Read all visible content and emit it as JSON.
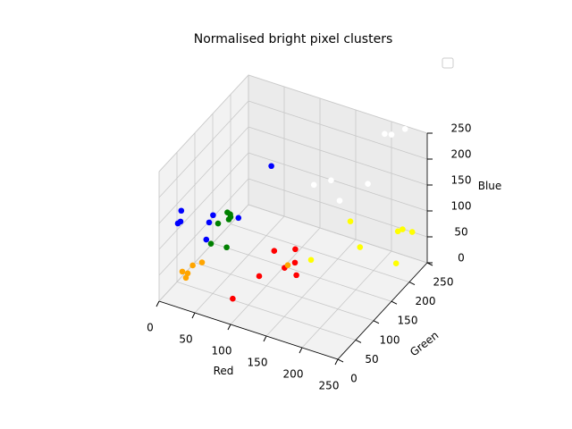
{
  "chart_data": {
    "type": "scatter3d",
    "title": "Normalised bright pixel clusters",
    "xlabel": "Red",
    "ylabel": "Green",
    "zlabel": "Blue",
    "xlim": [
      0,
      250
    ],
    "ylim": [
      0,
      250
    ],
    "zlim": [
      0,
      250
    ],
    "xticks": [
      0,
      50,
      100,
      150,
      200,
      250
    ],
    "yticks": [
      0,
      50,
      100,
      150,
      200,
      250
    ],
    "zticks": [
      0,
      50,
      100,
      150,
      200,
      250
    ],
    "grid": true,
    "legend": "upper right",
    "series": [
      {
        "color": "#ff0000",
        "x": [
          87,
          93,
          84,
          112,
          105,
          118,
          132
        ],
        "y": [
          32,
          94,
          154,
          127,
          171,
          144,
          120
        ],
        "z": [
          20,
          20,
          20,
          20,
          20,
          20,
          20
        ]
      },
      {
        "color": "#ffa500",
        "x": [
          11,
          21,
          18.5,
          16,
          23,
          118
        ],
        "y": [
          43,
          33,
          43,
          62,
          74,
          124
        ],
        "z": [
          30,
          30,
          30,
          30,
          30,
          30
        ]
      },
      {
        "color": "#ffff00",
        "x": [
          148,
          152,
          188,
          243,
          213,
          216,
          229
        ],
        "y": [
          129,
          231,
          186,
          177,
          242,
          249,
          250
        ],
        "z": [
          50,
          50,
          50,
          50,
          50,
          50,
          50
        ]
      },
      {
        "color": "#ffffff",
        "x": [
          205,
          213,
          222,
          128,
          142,
          156,
          185
        ],
        "y": [
          221,
          224,
          244,
          177,
          197,
          193,
          214
        ],
        "z": [
          250,
          250,
          250,
          150,
          150,
          120,
          150
        ]
      },
      {
        "color": "#008000",
        "x": [
          29.5,
          17,
          50,
          16,
          21,
          24.5,
          24
        ],
        "y": [
          86,
          131,
          89,
          159,
          157,
          146,
          152
        ],
        "z": [
          60,
          60,
          60,
          60,
          60,
          60,
          60
        ]
      },
      {
        "color": "#0000ff",
        "x": [
          15,
          16,
          6,
          41,
          27,
          24,
          54,
          79
        ],
        "y": [
          22.5,
          28,
          50,
          50,
          86,
          103,
          114,
          156
        ],
        "z": [
          140,
          140,
          140,
          100,
          100,
          100,
          100,
          180
        ]
      }
    ]
  }
}
